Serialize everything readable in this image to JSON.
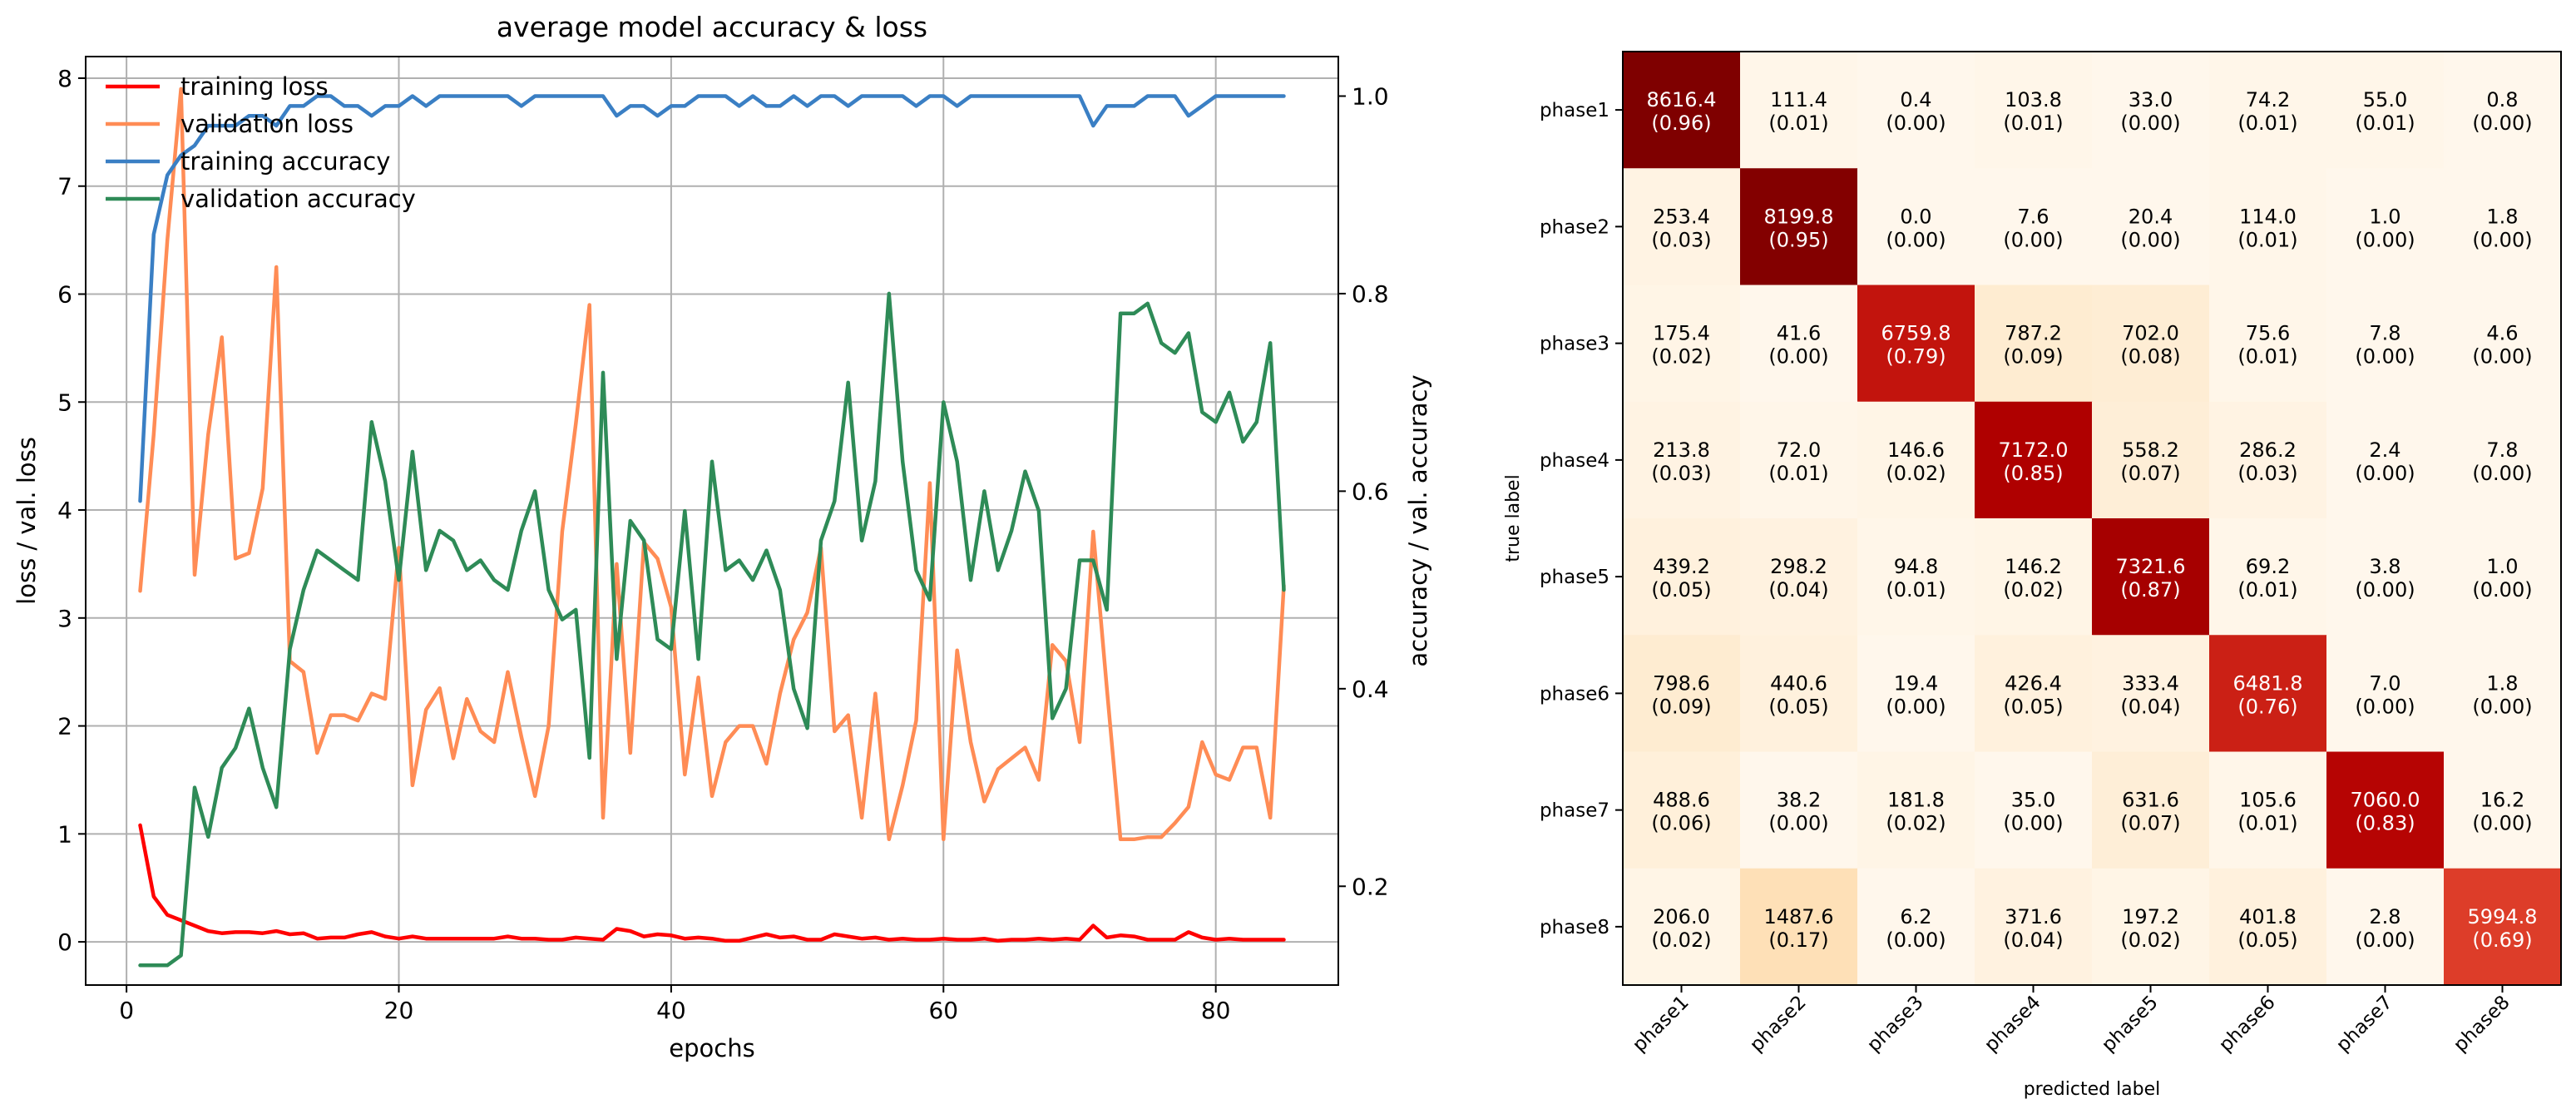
{
  "chart_data": [
    {
      "type": "line",
      "title": "average model accuracy & loss",
      "xlabel": "epochs",
      "ylabel": "loss / val. loss",
      "y2label": "accuracy / val. accuracy",
      "xlim": [
        -3,
        89
      ],
      "ylim": [
        -0.4,
        8.2
      ],
      "y2lim": [
        0.1,
        1.04
      ],
      "xticks": [
        0,
        20,
        40,
        60,
        80
      ],
      "yticks": [
        0,
        1,
        2,
        3,
        4,
        5,
        6,
        7,
        8
      ],
      "y2ticks": [
        0.2,
        0.4,
        0.6,
        0.8,
        1.0
      ],
      "y2ticklabels": [
        "0.2",
        "0.4",
        "0.6",
        "0.8",
        "1.0"
      ],
      "grid": true,
      "legend_position": "top-left",
      "x": [
        1,
        2,
        3,
        4,
        5,
        6,
        7,
        8,
        9,
        10,
        11,
        12,
        13,
        14,
        15,
        16,
        17,
        18,
        19,
        20,
        21,
        22,
        23,
        24,
        25,
        26,
        27,
        28,
        29,
        30,
        31,
        32,
        33,
        34,
        35,
        36,
        37,
        38,
        39,
        40,
        41,
        42,
        43,
        44,
        45,
        46,
        47,
        48,
        49,
        50,
        51,
        52,
        53,
        54,
        55,
        56,
        57,
        58,
        59,
        60,
        61,
        62,
        63,
        64,
        65,
        66,
        67,
        68,
        69,
        70,
        71,
        72,
        73,
        74,
        75,
        76,
        77,
        78,
        79,
        80,
        81,
        82,
        83,
        84,
        85
      ],
      "series": [
        {
          "name": "training loss",
          "color": "#ff0000",
          "axis": "left",
          "values": [
            1.08,
            0.42,
            0.25,
            0.2,
            0.15,
            0.1,
            0.08,
            0.09,
            0.09,
            0.08,
            0.1,
            0.07,
            0.08,
            0.03,
            0.04,
            0.04,
            0.07,
            0.09,
            0.05,
            0.03,
            0.05,
            0.03,
            0.03,
            0.03,
            0.03,
            0.03,
            0.03,
            0.05,
            0.03,
            0.03,
            0.02,
            0.02,
            0.04,
            0.03,
            0.02,
            0.12,
            0.1,
            0.05,
            0.07,
            0.06,
            0.03,
            0.04,
            0.03,
            0.01,
            0.01,
            0.04,
            0.07,
            0.04,
            0.05,
            0.02,
            0.02,
            0.07,
            0.05,
            0.03,
            0.04,
            0.02,
            0.03,
            0.02,
            0.02,
            0.03,
            0.02,
            0.02,
            0.03,
            0.01,
            0.02,
            0.02,
            0.03,
            0.02,
            0.03,
            0.02,
            0.15,
            0.04,
            0.06,
            0.05,
            0.02,
            0.02,
            0.02,
            0.09,
            0.04,
            0.02,
            0.03,
            0.02,
            0.02,
            0.02,
            0.02
          ]
        },
        {
          "name": "validation loss",
          "color": "#ff8c55",
          "axis": "left",
          "values": [
            3.25,
            4.7,
            6.5,
            7.9,
            3.4,
            4.7,
            5.6,
            3.55,
            3.6,
            4.2,
            6.25,
            2.6,
            2.5,
            1.75,
            2.1,
            2.1,
            2.05,
            2.3,
            2.25,
            3.65,
            1.45,
            2.15,
            2.35,
            1.7,
            2.25,
            1.95,
            1.85,
            2.5,
            1.9,
            1.35,
            2.0,
            3.8,
            4.8,
            5.9,
            1.15,
            3.5,
            1.75,
            3.7,
            3.55,
            3.1,
            1.55,
            2.45,
            1.35,
            1.85,
            2.0,
            2.0,
            1.65,
            2.3,
            2.8,
            3.05,
            3.65,
            1.95,
            2.1,
            1.15,
            2.3,
            0.95,
            1.45,
            2.05,
            4.25,
            0.95,
            2.7,
            1.85,
            1.3,
            1.6,
            1.7,
            1.8,
            1.5,
            2.75,
            2.6,
            1.85,
            3.8,
            2.35,
            0.95,
            0.95,
            0.97,
            0.97,
            1.1,
            1.25,
            1.85,
            1.55,
            1.5,
            1.8,
            1.8,
            1.15,
            3.3
          ]
        },
        {
          "name": "training accuracy",
          "color": "#3a7fc4",
          "axis": "right",
          "values": [
            0.59,
            0.86,
            0.92,
            0.94,
            0.95,
            0.97,
            0.97,
            0.97,
            0.98,
            0.98,
            0.97,
            0.99,
            0.99,
            1.0,
            1.0,
            0.99,
            0.99,
            0.98,
            0.99,
            0.99,
            1.0,
            0.99,
            1.0,
            1.0,
            1.0,
            1.0,
            1.0,
            1.0,
            0.99,
            1.0,
            1.0,
            1.0,
            1.0,
            1.0,
            1.0,
            0.98,
            0.99,
            0.99,
            0.98,
            0.99,
            0.99,
            1.0,
            1.0,
            1.0,
            0.99,
            1.0,
            0.99,
            0.99,
            1.0,
            0.99,
            1.0,
            1.0,
            0.99,
            1.0,
            1.0,
            1.0,
            1.0,
            0.99,
            1.0,
            1.0,
            0.99,
            1.0,
            1.0,
            1.0,
            1.0,
            1.0,
            1.0,
            1.0,
            1.0,
            1.0,
            0.97,
            0.99,
            0.99,
            0.99,
            1.0,
            1.0,
            1.0,
            0.98,
            0.99,
            1.0,
            1.0,
            1.0,
            1.0,
            1.0,
            1.0
          ]
        },
        {
          "name": "validation accuracy",
          "color": "#2e8b57",
          "axis": "right",
          "values": [
            0.12,
            0.12,
            0.12,
            0.13,
            0.3,
            0.25,
            0.32,
            0.34,
            0.38,
            0.32,
            0.28,
            0.44,
            0.5,
            0.54,
            0.53,
            0.52,
            0.51,
            0.67,
            0.61,
            0.51,
            0.64,
            0.52,
            0.56,
            0.55,
            0.52,
            0.53,
            0.51,
            0.5,
            0.56,
            0.6,
            0.5,
            0.47,
            0.48,
            0.33,
            0.72,
            0.43,
            0.57,
            0.55,
            0.45,
            0.44,
            0.58,
            0.43,
            0.63,
            0.52,
            0.53,
            0.51,
            0.54,
            0.5,
            0.4,
            0.36,
            0.55,
            0.59,
            0.71,
            0.55,
            0.61,
            0.8,
            0.63,
            0.52,
            0.49,
            0.69,
            0.63,
            0.51,
            0.6,
            0.52,
            0.56,
            0.62,
            0.58,
            0.37,
            0.4,
            0.53,
            0.53,
            0.48,
            0.78,
            0.78,
            0.79,
            0.75,
            0.74,
            0.76,
            0.68,
            0.67,
            0.7,
            0.65,
            0.67,
            0.75,
            0.5
          ]
        }
      ]
    },
    {
      "type": "heatmap",
      "title": "",
      "xlabel": "predicted label",
      "ylabel": "true label",
      "labels": [
        "phase1",
        "phase2",
        "phase3",
        "phase4",
        "phase5",
        "phase6",
        "phase7",
        "phase8"
      ],
      "counts": [
        [
          8616.4,
          111.4,
          0.4,
          103.8,
          33.0,
          74.2,
          55.0,
          0.8
        ],
        [
          253.4,
          8199.8,
          0.0,
          7.6,
          20.4,
          114.0,
          1.0,
          1.8
        ],
        [
          175.4,
          41.6,
          6759.8,
          787.2,
          702.0,
          75.6,
          7.8,
          4.6
        ],
        [
          213.8,
          72.0,
          146.6,
          7172.0,
          558.2,
          286.2,
          2.4,
          7.8
        ],
        [
          439.2,
          298.2,
          94.8,
          146.2,
          7321.6,
          69.2,
          3.8,
          1.0
        ],
        [
          798.6,
          440.6,
          19.4,
          426.4,
          333.4,
          6481.8,
          7.0,
          1.8
        ],
        [
          488.6,
          38.2,
          181.8,
          35.0,
          631.6,
          105.6,
          7060.0,
          16.2
        ],
        [
          206.0,
          1487.6,
          6.2,
          371.6,
          197.2,
          401.8,
          2.8,
          5994.8
        ]
      ],
      "fractions": [
        [
          0.96,
          0.01,
          0.0,
          0.01,
          0.0,
          0.01,
          0.01,
          0.0
        ],
        [
          0.03,
          0.95,
          0.0,
          0.0,
          0.0,
          0.01,
          0.0,
          0.0
        ],
        [
          0.02,
          0.0,
          0.79,
          0.09,
          0.08,
          0.01,
          0.0,
          0.0
        ],
        [
          0.03,
          0.01,
          0.02,
          0.85,
          0.07,
          0.03,
          0.0,
          0.0
        ],
        [
          0.05,
          0.04,
          0.01,
          0.02,
          0.87,
          0.01,
          0.0,
          0.0
        ],
        [
          0.09,
          0.05,
          0.0,
          0.05,
          0.04,
          0.76,
          0.0,
          0.0
        ],
        [
          0.06,
          0.0,
          0.02,
          0.0,
          0.07,
          0.01,
          0.83,
          0.0
        ],
        [
          0.02,
          0.17,
          0.0,
          0.04,
          0.02,
          0.05,
          0.0,
          0.69
        ]
      ],
      "colormap": "OrRd",
      "cmap_max": 0.96
    }
  ]
}
